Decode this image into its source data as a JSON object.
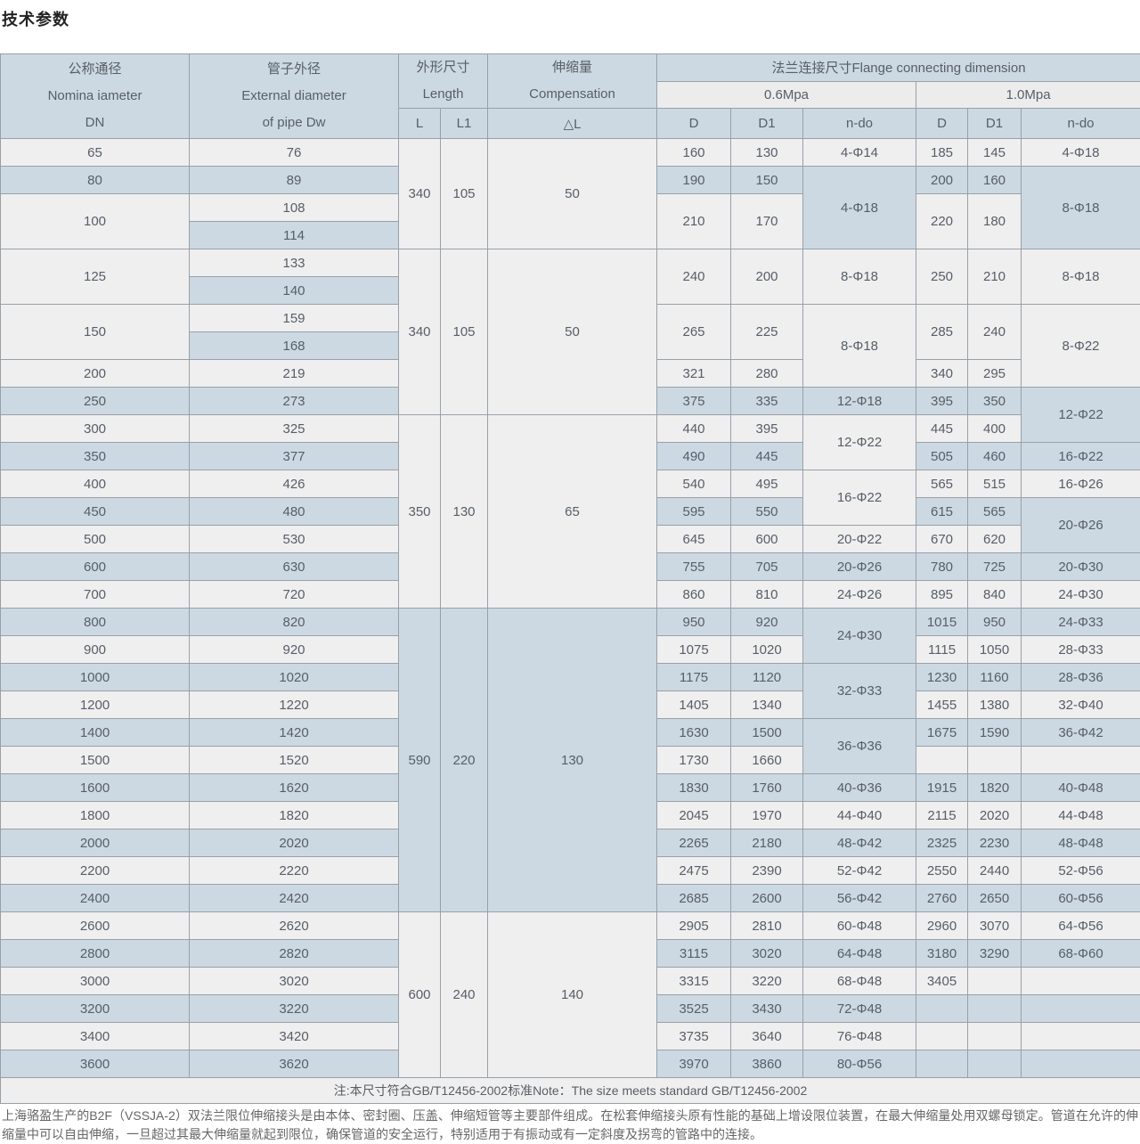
{
  "page": {
    "title": "技术参数"
  },
  "colors": {
    "header_bg": "#ccd9e2",
    "subheader_bg": "#ececed",
    "row_light": "#efeff0",
    "row_blue": "#ccd9e2",
    "note_bg": "#efefef",
    "border": "#99a0a7",
    "text": "#585e66",
    "title": "#222222",
    "paragraph": "#666666"
  },
  "table": {
    "header": {
      "col_dn": [
        "公称通径",
        "Nomina iameter",
        "DN"
      ],
      "col_dw": [
        "管子外径",
        "External diameter",
        "of pipe Dw"
      ],
      "col_size": [
        "外形尺寸",
        "Length"
      ],
      "col_comp": [
        "伸缩量",
        "Compensation"
      ],
      "l": "L",
      "l1": "L1",
      "dl": "△L",
      "flange": "法兰连接尺寸Flange connecting dimension",
      "p06": "0.6Mpa",
      "p10": "1.0Mpa",
      "d": "D",
      "d1": "D1",
      "ndo": "n-do"
    },
    "grid_rows": [
      [
        {
          "t": "65"
        },
        {
          "t": "76"
        },
        {
          "t": "340",
          "rs": 4
        },
        {
          "t": "105",
          "rs": 4
        },
        {
          "t": "50",
          "rs": 4
        },
        {
          "t": "160"
        },
        {
          "t": "130"
        },
        {
          "t": "4-Φ14"
        },
        {
          "t": "185"
        },
        {
          "t": "145"
        },
        {
          "t": "4-Φ18"
        }
      ],
      [
        {
          "t": "80"
        },
        {
          "t": "89"
        },
        {
          "t": "190"
        },
        {
          "t": "150"
        },
        {
          "t": "4-Φ18",
          "rs": 3
        },
        {
          "t": "200"
        },
        {
          "t": "160"
        },
        {
          "t": "8-Φ18",
          "rs": 3
        }
      ],
      [
        {
          "t": "100",
          "rs": 2
        },
        {
          "t": "108"
        },
        {
          "t": "210",
          "rs": 2
        },
        {
          "t": "170",
          "rs": 2
        },
        {
          "t": "220",
          "rs": 2
        },
        {
          "t": "180",
          "rs": 2
        }
      ],
      [
        {
          "t": "114"
        }
      ],
      [
        {
          "t": "125",
          "rs": 2
        },
        {
          "t": "133"
        },
        {
          "t": "340",
          "rs": 6
        },
        {
          "t": "105",
          "rs": 6
        },
        {
          "t": "50",
          "rs": 6
        },
        {
          "t": "240",
          "rs": 2
        },
        {
          "t": "200",
          "rs": 2
        },
        {
          "t": "8-Φ18",
          "rs": 2
        },
        {
          "t": "250",
          "rs": 2
        },
        {
          "t": "210",
          "rs": 2
        },
        {
          "t": "8-Φ18",
          "rs": 2
        }
      ],
      [
        {
          "t": "140"
        }
      ],
      [
        {
          "t": "150",
          "rs": 2
        },
        {
          "t": "159"
        },
        {
          "t": "265",
          "rs": 2
        },
        {
          "t": "225",
          "rs": 2
        },
        {
          "t": "8-Φ18",
          "rs": 3
        },
        {
          "t": "285",
          "rs": 2
        },
        {
          "t": "240",
          "rs": 2
        },
        {
          "t": "8-Φ22",
          "rs": 3
        }
      ],
      [
        {
          "t": "168"
        }
      ],
      [
        {
          "t": "200"
        },
        {
          "t": "219"
        },
        {
          "t": "321"
        },
        {
          "t": "280"
        },
        {
          "t": "340"
        },
        {
          "t": "295"
        }
      ],
      [
        {
          "t": "250"
        },
        {
          "t": "273"
        },
        {
          "t": "375"
        },
        {
          "t": "335"
        },
        {
          "t": "12-Φ18"
        },
        {
          "t": "395"
        },
        {
          "t": "350"
        },
        {
          "t": "12-Φ22",
          "rs": 2
        }
      ],
      [
        {
          "t": "300"
        },
        {
          "t": "325"
        },
        {
          "t": "350",
          "rs": 7
        },
        {
          "t": "130",
          "rs": 7
        },
        {
          "t": "65",
          "rs": 7
        },
        {
          "t": "440"
        },
        {
          "t": "395"
        },
        {
          "t": "12-Φ22",
          "rs": 2
        },
        {
          "t": "445"
        },
        {
          "t": "400"
        }
      ],
      [
        {
          "t": "350"
        },
        {
          "t": "377"
        },
        {
          "t": "490"
        },
        {
          "t": "445"
        },
        {
          "t": "505"
        },
        {
          "t": "460"
        },
        {
          "t": "16-Φ22"
        }
      ],
      [
        {
          "t": "400"
        },
        {
          "t": "426"
        },
        {
          "t": "540"
        },
        {
          "t": "495"
        },
        {
          "t": "16-Φ22",
          "rs": 2
        },
        {
          "t": "565"
        },
        {
          "t": "515"
        },
        {
          "t": "16-Φ26"
        }
      ],
      [
        {
          "t": "450"
        },
        {
          "t": "480"
        },
        {
          "t": "595"
        },
        {
          "t": "550"
        },
        {
          "t": "615"
        },
        {
          "t": "565"
        },
        {
          "t": "20-Φ26",
          "rs": 2
        }
      ],
      [
        {
          "t": "500"
        },
        {
          "t": "530"
        },
        {
          "t": "645"
        },
        {
          "t": "600"
        },
        {
          "t": "20-Φ22"
        },
        {
          "t": "670"
        },
        {
          "t": "620"
        }
      ],
      [
        {
          "t": "600"
        },
        {
          "t": "630"
        },
        {
          "t": "755"
        },
        {
          "t": "705"
        },
        {
          "t": "20-Φ26"
        },
        {
          "t": "780"
        },
        {
          "t": "725"
        },
        {
          "t": "20-Φ30"
        }
      ],
      [
        {
          "t": "700"
        },
        {
          "t": "720"
        },
        {
          "t": "860"
        },
        {
          "t": "810"
        },
        {
          "t": "24-Φ26"
        },
        {
          "t": "895"
        },
        {
          "t": "840"
        },
        {
          "t": "24-Φ30"
        }
      ],
      [
        {
          "t": "800"
        },
        {
          "t": "820"
        },
        {
          "t": "590",
          "rs": 11
        },
        {
          "t": "220",
          "rs": 11
        },
        {
          "t": "130",
          "rs": 11
        },
        {
          "t": "950"
        },
        {
          "t": "920"
        },
        {
          "t": "24-Φ30",
          "rs": 2
        },
        {
          "t": "1015"
        },
        {
          "t": "950"
        },
        {
          "t": "24-Φ33"
        }
      ],
      [
        {
          "t": "900"
        },
        {
          "t": "920"
        },
        {
          "t": "1075"
        },
        {
          "t": "1020"
        },
        {
          "t": "1115"
        },
        {
          "t": "1050"
        },
        {
          "t": "28-Φ33"
        }
      ],
      [
        {
          "t": "1000"
        },
        {
          "t": "1020"
        },
        {
          "t": "1175"
        },
        {
          "t": "1120"
        },
        {
          "t": "32-Φ33",
          "rs": 2
        },
        {
          "t": "1230"
        },
        {
          "t": "1160"
        },
        {
          "t": "28-Φ36"
        }
      ],
      [
        {
          "t": "1200"
        },
        {
          "t": "1220"
        },
        {
          "t": "1405"
        },
        {
          "t": "1340"
        },
        {
          "t": "1455"
        },
        {
          "t": "1380"
        },
        {
          "t": "32-Φ40"
        }
      ],
      [
        {
          "t": "1400"
        },
        {
          "t": "1420"
        },
        {
          "t": "1630"
        },
        {
          "t": "1500"
        },
        {
          "t": "36-Φ36",
          "rs": 2
        },
        {
          "t": "1675"
        },
        {
          "t": "1590"
        },
        {
          "t": "36-Φ42"
        }
      ],
      [
        {
          "t": "1500"
        },
        {
          "t": "1520"
        },
        {
          "t": "1730"
        },
        {
          "t": "1660"
        },
        {
          "t": ""
        },
        {
          "t": ""
        },
        {
          "t": ""
        }
      ],
      [
        {
          "t": "1600"
        },
        {
          "t": "1620"
        },
        {
          "t": "1830"
        },
        {
          "t": "1760"
        },
        {
          "t": "40-Φ36"
        },
        {
          "t": "1915"
        },
        {
          "t": "1820"
        },
        {
          "t": "40-Φ48"
        }
      ],
      [
        {
          "t": "1800"
        },
        {
          "t": "1820"
        },
        {
          "t": "2045"
        },
        {
          "t": "1970"
        },
        {
          "t": "44-Φ40"
        },
        {
          "t": "2115"
        },
        {
          "t": "2020"
        },
        {
          "t": "44-Φ48"
        }
      ],
      [
        {
          "t": "2000"
        },
        {
          "t": "2020"
        },
        {
          "t": "2265"
        },
        {
          "t": "2180"
        },
        {
          "t": "48-Φ42"
        },
        {
          "t": "2325"
        },
        {
          "t": "2230"
        },
        {
          "t": "48-Φ48"
        }
      ],
      [
        {
          "t": "2200"
        },
        {
          "t": "2220"
        },
        {
          "t": "2475"
        },
        {
          "t": "2390"
        },
        {
          "t": "52-Φ42"
        },
        {
          "t": "2550"
        },
        {
          "t": "2440"
        },
        {
          "t": "52-Φ56"
        }
      ],
      [
        {
          "t": "2400"
        },
        {
          "t": "2420"
        },
        {
          "t": "2685"
        },
        {
          "t": "2600"
        },
        {
          "t": "56-Φ42"
        },
        {
          "t": "2760"
        },
        {
          "t": "2650"
        },
        {
          "t": "60-Φ56"
        }
      ],
      [
        {
          "t": "2600"
        },
        {
          "t": "2620"
        },
        {
          "t": "600",
          "rs": 6
        },
        {
          "t": "240",
          "rs": 6
        },
        {
          "t": "140",
          "rs": 6
        },
        {
          "t": "2905"
        },
        {
          "t": "2810"
        },
        {
          "t": "60-Φ48"
        },
        {
          "t": "2960"
        },
        {
          "t": "3070"
        },
        {
          "t": "64-Φ56"
        }
      ],
      [
        {
          "t": "2800"
        },
        {
          "t": "2820"
        },
        {
          "t": "3115"
        },
        {
          "t": "3020"
        },
        {
          "t": "64-Φ48"
        },
        {
          "t": "3180"
        },
        {
          "t": "3290"
        },
        {
          "t": "68-Φ60"
        }
      ],
      [
        {
          "t": "3000"
        },
        {
          "t": "3020"
        },
        {
          "t": "3315"
        },
        {
          "t": "3220"
        },
        {
          "t": "68-Φ48"
        },
        {
          "t": "3405"
        },
        {
          "t": ""
        },
        {
          "t": ""
        }
      ],
      [
        {
          "t": "3200"
        },
        {
          "t": "3220"
        },
        {
          "t": "3525"
        },
        {
          "t": "3430"
        },
        {
          "t": "72-Φ48"
        },
        {
          "t": ""
        },
        {
          "t": ""
        },
        {
          "t": ""
        }
      ],
      [
        {
          "t": "3400"
        },
        {
          "t": "3420"
        },
        {
          "t": "3735"
        },
        {
          "t": "3640"
        },
        {
          "t": "76-Φ48"
        },
        {
          "t": ""
        },
        {
          "t": ""
        },
        {
          "t": ""
        }
      ],
      [
        {
          "t": "3600"
        },
        {
          "t": "3620"
        },
        {
          "t": "3970"
        },
        {
          "t": "3860"
        },
        {
          "t": "80-Φ56"
        },
        {
          "t": ""
        },
        {
          "t": ""
        },
        {
          "t": ""
        }
      ]
    ],
    "note": "注:本尺寸符合GB/T12456-2002标准Note：The size meets standard GB/T12456-2002"
  },
  "footer": {
    "paragraph": "上海骆盈生产的B2F（VSSJA-2）双法兰限位伸缩接头是由本体、密封圈、压盖、伸缩短管等主要部件组成。在松套伸缩接头原有性能的基础上增设限位装置，在最大伸缩量处用双螺母锁定。管道在允许的伸缩量中可以自由伸缩，一旦超过其最大伸缩量就起到限位，确保管道的安全运行，特别适用于有振动或有一定斜度及拐弯的管路中的连接。"
  }
}
